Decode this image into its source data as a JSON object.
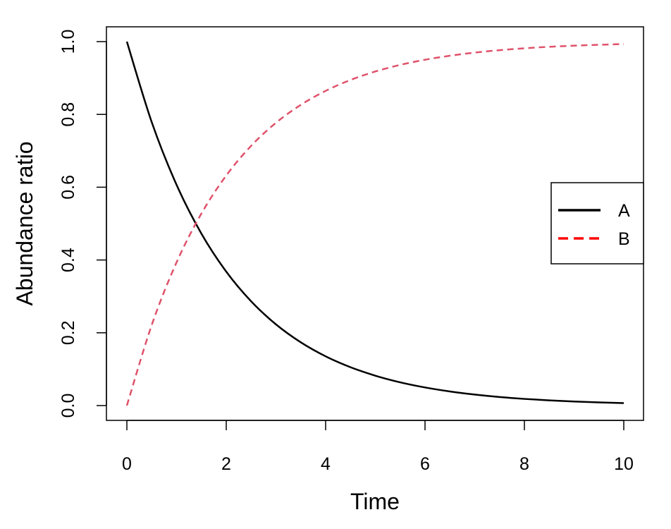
{
  "chart_data": {
    "type": "line",
    "title": "",
    "xlabel": "Time",
    "ylabel": "Abundance ratio",
    "xlim": [
      0,
      10
    ],
    "ylim": [
      0,
      1
    ],
    "xticks": [
      0,
      2,
      4,
      6,
      8,
      10
    ],
    "xtick_labels": [
      "0",
      "2",
      "4",
      "6",
      "8",
      "10"
    ],
    "yticks": [
      0,
      0.2,
      0.4,
      0.6,
      0.8,
      1
    ],
    "ytick_labels": [
      "0.0",
      "0.2",
      "0.4",
      "0.6",
      "0.8",
      "1.0"
    ],
    "grid": false,
    "legend_position": "right",
    "x": [
      0,
      0.5,
      1,
      1.5,
      2,
      2.5,
      3,
      3.5,
      4,
      4.5,
      5,
      5.5,
      6,
      6.5,
      7,
      7.5,
      8,
      8.5,
      9,
      9.5,
      10
    ],
    "series": [
      {
        "name": "A",
        "color": "#000000",
        "dash": "solid",
        "values": [
          1.0,
          0.7788,
          0.6065,
          0.4724,
          0.3679,
          0.2865,
          0.2231,
          0.1738,
          0.1353,
          0.1054,
          0.0821,
          0.0639,
          0.0498,
          0.0388,
          0.0302,
          0.0235,
          0.0183,
          0.0143,
          0.0111,
          0.0087,
          0.0067
        ]
      },
      {
        "name": "B",
        "color": "#DF536B",
        "legend_color": "#FF0000",
        "dash": "dashed",
        "values": [
          0.0,
          0.2212,
          0.3935,
          0.5276,
          0.6321,
          0.7135,
          0.7769,
          0.8262,
          0.8647,
          0.8946,
          0.9179,
          0.9361,
          0.9502,
          0.9612,
          0.9698,
          0.9765,
          0.9817,
          0.9857,
          0.9889,
          0.9913,
          0.9933
        ]
      }
    ]
  }
}
